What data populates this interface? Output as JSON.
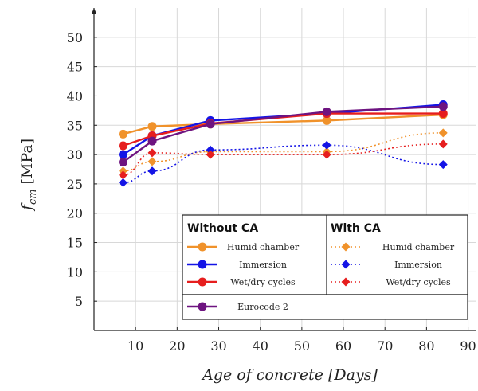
{
  "chart_data": {
    "type": "line",
    "xlabel": "Age of concrete [Days]",
    "ylabel_main": "f",
    "ylabel_sub": "cm",
    "ylabel_unit": "[MPa]",
    "xlim": [
      0,
      92
    ],
    "ylim": [
      0,
      55
    ],
    "xticks": [
      10,
      20,
      30,
      40,
      50,
      60,
      70,
      80,
      90
    ],
    "yticks": [
      5,
      10,
      15,
      20,
      25,
      30,
      35,
      40,
      45,
      50
    ],
    "grid": true,
    "legend_placement": "bottom-right",
    "legend_groups": {
      "without": "Without CA",
      "with": "With CA"
    },
    "x": [
      7,
      14,
      28,
      56,
      84
    ],
    "series": [
      {
        "name": "Humid chamber",
        "group": "without",
        "color": "#f0922b",
        "style": "solid",
        "marker": "circle",
        "values": [
          33.5,
          34.8,
          35.2,
          35.8,
          36.8
        ]
      },
      {
        "name": "Immersion",
        "group": "without",
        "color": "#1414e6",
        "style": "solid",
        "marker": "circle",
        "values": [
          30.0,
          33.2,
          35.8,
          37.0,
          38.5
        ]
      },
      {
        "name": "Wet/dry cycles",
        "group": "without",
        "color": "#e61e1e",
        "style": "solid",
        "marker": "circle",
        "values": [
          31.5,
          33.2,
          35.3,
          37.0,
          37.0
        ]
      },
      {
        "name": "Humid chamber",
        "group": "with",
        "color": "#f0922b",
        "style": "dotted",
        "marker": "diamond",
        "values": [
          27.2,
          28.8,
          30.5,
          30.5,
          33.7
        ]
      },
      {
        "name": "Immersion",
        "group": "with",
        "color": "#1414e6",
        "style": "dotted",
        "marker": "diamond",
        "values": [
          25.2,
          27.2,
          30.8,
          31.6,
          28.3
        ]
      },
      {
        "name": "Wet/dry cycles",
        "group": "with",
        "color": "#e61e1e",
        "style": "dotted",
        "marker": "diamond",
        "values": [
          26.5,
          30.3,
          30.0,
          30.0,
          31.8
        ]
      },
      {
        "name": "Eurocode 2",
        "group": "model",
        "color": "#6e1480",
        "style": "solid",
        "marker": "circle",
        "values": [
          28.7,
          32.3,
          35.2,
          37.3,
          38.2
        ]
      }
    ]
  }
}
